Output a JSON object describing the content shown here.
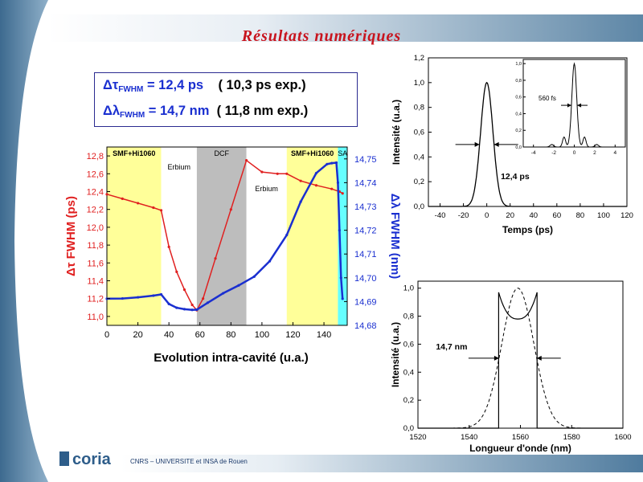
{
  "slide": {
    "title": "Résultats numériques",
    "footer": "CNRS – UNIVERSITE et INSA de Rouen",
    "logo_text": "coria"
  },
  "results": {
    "tau_label": "Δτ",
    "lambda_label": "Δλ",
    "sub": "FWHM",
    "tau_value": "= 12,4 ps",
    "tau_exp": "( 10,3 ps exp.)",
    "lambda_value": "= 14,7 nm",
    "lambda_exp": "( 11,8 nm exp.)"
  },
  "chart_data": [
    {
      "type": "line",
      "xlabel": "Evolution intra-cavité (u.a.)",
      "ylabel_left": "Δτ FWHM (ps)",
      "ylabel_right": "Δλ FWHM (nm)",
      "xlim": [
        0,
        155
      ],
      "xticks": [
        "0",
        "20",
        "40",
        "60",
        "80",
        "100",
        "120",
        "140"
      ],
      "ylim_left": [
        10.9,
        12.9
      ],
      "yticks_left": [
        "11,0",
        "11,2",
        "11,4",
        "11,6",
        "11,8",
        "12,0",
        "12,2",
        "12,4",
        "12,6",
        "12,8"
      ],
      "ylim_right": [
        14.68,
        14.755
      ],
      "yticks_right": [
        "14,68",
        "14,69",
        "14,70",
        "14,71",
        "14,72",
        "14,73",
        "14,74",
        "14,75"
      ],
      "regions": [
        {
          "label": "SMF+Hi1060",
          "x0": 0,
          "x1": 35,
          "color": "#ffff99"
        },
        {
          "label": "Erbium",
          "x0": 35,
          "x1": 58,
          "color": "#ffffff"
        },
        {
          "label": "DCF",
          "x0": 58,
          "x1": 90,
          "color": "#bdbdbd"
        },
        {
          "label": "Erbium",
          "x0": 90,
          "x1": 116,
          "color": "#ffffff"
        },
        {
          "label": "SMF+Hi1060",
          "x0": 116,
          "x1": 149,
          "color": "#ffff99"
        },
        {
          "label": "SA",
          "x0": 149,
          "x1": 155,
          "color": "#66ffff"
        }
      ],
      "series": [
        {
          "axis": "left",
          "color": "#e02020",
          "x": [
            0,
            10,
            20,
            30,
            35,
            40,
            45,
            50,
            55,
            58,
            62,
            70,
            80,
            90,
            100,
            110,
            116,
            125,
            135,
            145,
            150,
            152
          ],
          "y": [
            12.37,
            12.32,
            12.27,
            12.22,
            12.19,
            11.78,
            11.5,
            11.3,
            11.13,
            11.07,
            11.2,
            11.65,
            12.2,
            12.75,
            12.62,
            12.6,
            12.6,
            12.52,
            12.47,
            12.43,
            12.4,
            12.38
          ]
        },
        {
          "axis": "right",
          "color": "#1a2fd0",
          "x": [
            0,
            10,
            20,
            30,
            35,
            40,
            45,
            50,
            55,
            58,
            65,
            75,
            85,
            95,
            105,
            116,
            125,
            135,
            142,
            145,
            148,
            149,
            150,
            151,
            152
          ],
          "y": [
            14.6912,
            14.6913,
            14.6918,
            14.6925,
            14.693,
            14.689,
            14.6874,
            14.6868,
            14.6865,
            14.6866,
            14.6895,
            14.6935,
            14.6968,
            14.7005,
            14.707,
            14.718,
            14.732,
            14.744,
            14.7478,
            14.7482,
            14.7484,
            14.74,
            14.72,
            14.7,
            14.6912
          ]
        }
      ]
    },
    {
      "type": "line",
      "xlabel": "Temps (ps)",
      "ylabel": "Intensité (u.a.)",
      "xlim": [
        -50,
        120
      ],
      "xticks": [
        "-40",
        "-20",
        "0",
        "20",
        "40",
        "60",
        "80",
        "100",
        "120"
      ],
      "ylim": [
        0,
        1.2
      ],
      "yticks": [
        "0,0",
        "0,2",
        "0,4",
        "0,6",
        "0,8",
        "1,0",
        "1,2"
      ],
      "annotation": "12,4 ps",
      "series": [
        {
          "shape": "gaussian",
          "center": 0,
          "fwhm": 12.4,
          "peak": 1.0
        }
      ]
    },
    {
      "type": "line",
      "inset": true,
      "annotation": "560 fs",
      "xlim": [
        -5,
        5
      ],
      "xticks": [
        "-4",
        "-2",
        "0",
        "2",
        "4"
      ],
      "yticks": [
        "0,0",
        "0,2",
        "0,4",
        "0,6",
        "0,8",
        "1,0"
      ],
      "series": [
        {
          "shape": "autocorrelation",
          "fwhm": 0.56
        }
      ]
    },
    {
      "type": "line",
      "xlabel": "Longueur d'onde (nm)",
      "ylabel": "Intensité (u.a.)",
      "xlim": [
        1520,
        1600
      ],
      "xticks": [
        "1520",
        "1540",
        "1560",
        "1580",
        "1600"
      ],
      "ylim": [
        0,
        1.05
      ],
      "yticks": [
        "0,0",
        "0,2",
        "0,4",
        "0,6",
        "0,8",
        "1,0"
      ],
      "annotation": "14,7 nm",
      "series": [
        {
          "style": "solid",
          "name": "",
          "edges": [
            1551.5,
            1566.5
          ],
          "edge_peak": 0.97,
          "center_dip": 0.78
        },
        {
          "style": "dashed",
          "name": "",
          "center": 1559,
          "fwhm": 14.7,
          "peak": 1.0
        }
      ]
    }
  ]
}
